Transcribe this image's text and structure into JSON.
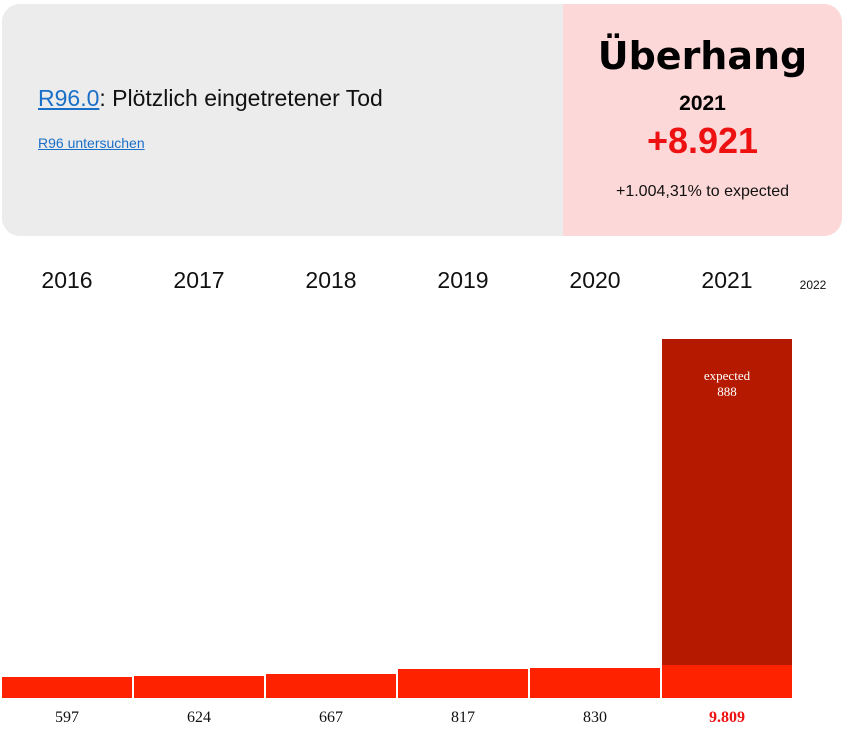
{
  "header": {
    "code": "R96.0",
    "code_desc": ": Plötzlich eingetretener Tod",
    "investigate_link": "R96 untersuchen",
    "overhang_title": "Überhang",
    "overhang_year": "2021",
    "overhang_value": "+8.921",
    "overhang_note": "+1.004,31% to expected"
  },
  "colors": {
    "bar": "#ff2200",
    "bar_expected": "#b51a00",
    "highlight_text": "#ee1111",
    "link": "#1a6fc8"
  },
  "chart_data": {
    "type": "bar",
    "categories": [
      "2016",
      "2017",
      "2018",
      "2019",
      "2020",
      "2021"
    ],
    "values": [
      597,
      624,
      667,
      817,
      830,
      9809
    ],
    "value_labels": [
      "597",
      "624",
      "667",
      "817",
      "830",
      "9.809"
    ],
    "extra_category": "2022",
    "expected": {
      "category": "2021",
      "label": "expected",
      "value": 888,
      "value_label": "888"
    },
    "highlight_category": "2021"
  }
}
